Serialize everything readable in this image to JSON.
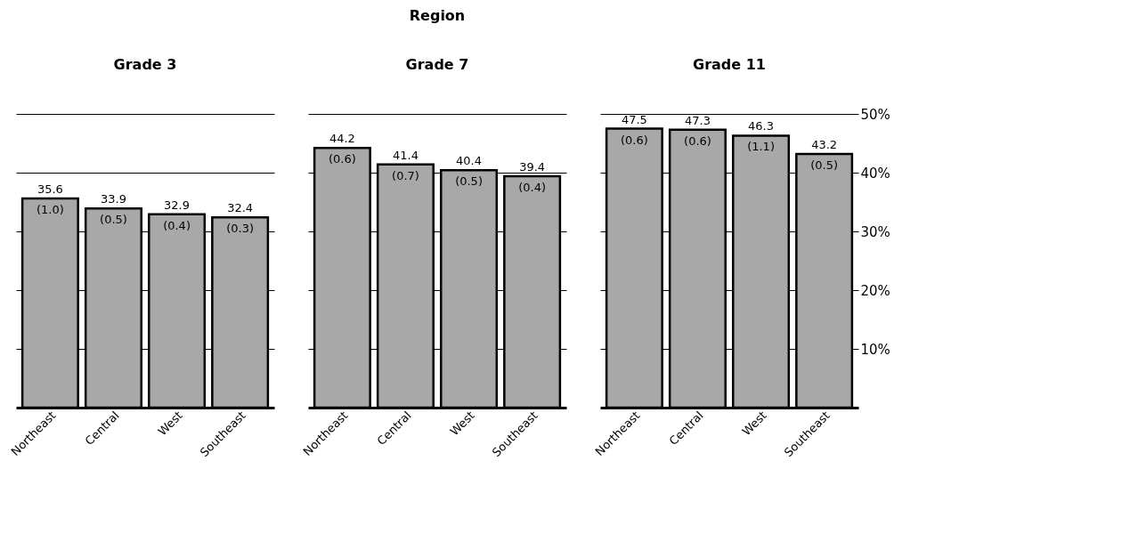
{
  "chart_data": [
    {
      "type": "bar",
      "title": "Grade 3",
      "categories": [
        "Northeast",
        "Central",
        "West",
        "Southeast"
      ],
      "values": [
        35.6,
        33.9,
        32.9,
        32.4
      ],
      "color": "#a8a8a8",
      "data_labels": true,
      "ylim": [
        0,
        50
      ],
      "yticks": [
        10,
        20,
        30,
        40,
        50
      ],
      "grid": "y",
      "tick_labels": "x",
      "annotations": [
        {
          "text": "(1.0)",
          "x": "Northeast",
          "y": 35.6
        },
        {
          "text": "(0.5)",
          "x": "Central",
          "y": 33.9
        },
        {
          "text": "(0.4)",
          "x": "West",
          "y": 32.9
        },
        {
          "text": "(0.3)",
          "x": "Southeast",
          "y": 32.4
        }
      ]
    },
    {
      "type": "bar",
      "title": "Grade 7",
      "xlabel": "Region",
      "categories": [
        "Northeast",
        "Central",
        "West",
        "Southeast"
      ],
      "values": [
        44.2,
        41.4,
        40.4,
        39.4
      ],
      "color": "#a8a8a8",
      "data_labels": true,
      "ylim": [
        0,
        50
      ],
      "yticks": [
        10,
        20,
        30,
        40,
        50
      ],
      "grid": "y",
      "tick_labels": "x",
      "annotations": [
        {
          "text": "(0.6)",
          "x": "Northeast",
          "y": 44.2
        },
        {
          "text": "(0.7)",
          "x": "Central",
          "y": 41.4
        },
        {
          "text": "(0.5)",
          "x": "West",
          "y": 40.4
        },
        {
          "text": "(0.4)",
          "x": "Southeast",
          "y": 39.4
        }
      ]
    },
    {
      "type": "bar",
      "title": "Grade 11",
      "categories": [
        "Northeast",
        "Central",
        "West",
        "Southeast"
      ],
      "values": [
        47.5,
        47.3,
        46.3,
        43.2
      ],
      "color": "#a8a8a8",
      "data_labels": true,
      "ylim": [
        0,
        50
      ],
      "yticks": [
        {
          "value": 10,
          "label": "10%"
        },
        {
          "value": 20,
          "label": "20%"
        },
        {
          "value": 30,
          "label": "30%"
        },
        {
          "value": 40,
          "label": "40%"
        },
        {
          "value": 50,
          "label": "50%"
        }
      ],
      "grid": "y",
      "annotations": [
        {
          "text": "(0.6)",
          "x": "Northeast",
          "y": 47.5
        },
        {
          "text": "(0.6)",
          "x": "Central",
          "y": 47.3
        },
        {
          "text": "(1.1)",
          "x": "West",
          "y": 46.3
        },
        {
          "text": "(0.5)",
          "x": "Southeast",
          "y": 43.2
        }
      ]
    }
  ]
}
